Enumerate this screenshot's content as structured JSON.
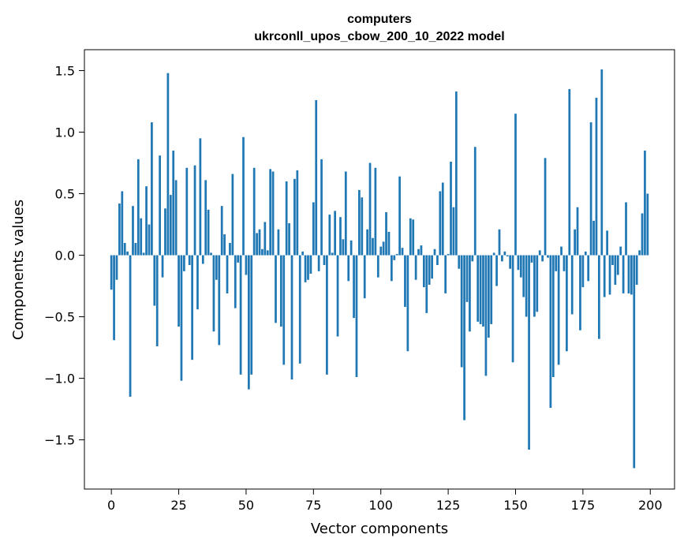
{
  "chart_data": {
    "type": "bar",
    "title": "computers",
    "subtitle": "ukrconll_upos_cbow_200_10_2022 model",
    "xlabel": "Vector components",
    "ylabel": "Components values",
    "xlim": [
      -10,
      209
    ],
    "ylim": [
      -1.9,
      1.67
    ],
    "xticks": [
      0,
      25,
      50,
      75,
      100,
      125,
      150,
      175,
      200
    ],
    "yticks": [
      -1.5,
      -1.0,
      -0.5,
      0.0,
      0.5,
      1.0,
      1.5
    ],
    "ytick_labels": [
      "−1.5",
      "−1.0",
      "−0.5",
      "0.0",
      "0.5",
      "1.0",
      "1.5"
    ],
    "grid": false,
    "bar_color": "#1f77b4",
    "x": [
      0,
      1,
      2,
      3,
      4,
      5,
      6,
      7,
      8,
      9,
      10,
      11,
      12,
      13,
      14,
      15,
      16,
      17,
      18,
      19,
      20,
      21,
      22,
      23,
      24,
      25,
      26,
      27,
      28,
      29,
      30,
      31,
      32,
      33,
      34,
      35,
      36,
      37,
      38,
      39,
      40,
      41,
      42,
      43,
      44,
      45,
      46,
      47,
      48,
      49,
      50,
      51,
      52,
      53,
      54,
      55,
      56,
      57,
      58,
      59,
      60,
      61,
      62,
      63,
      64,
      65,
      66,
      67,
      68,
      69,
      70,
      71,
      72,
      73,
      74,
      75,
      76,
      77,
      78,
      79,
      80,
      81,
      82,
      83,
      84,
      85,
      86,
      87,
      88,
      89,
      90,
      91,
      92,
      93,
      94,
      95,
      96,
      97,
      98,
      99,
      100,
      101,
      102,
      103,
      104,
      105,
      106,
      107,
      108,
      109,
      110,
      111,
      112,
      113,
      114,
      115,
      116,
      117,
      118,
      119,
      120,
      121,
      122,
      123,
      124,
      125,
      126,
      127,
      128,
      129,
      130,
      131,
      132,
      133,
      134,
      135,
      136,
      137,
      138,
      139,
      140,
      141,
      142,
      143,
      144,
      145,
      146,
      147,
      148,
      149,
      150,
      151,
      152,
      153,
      154,
      155,
      156,
      157,
      158,
      159,
      160,
      161,
      162,
      163,
      164,
      165,
      166,
      167,
      168,
      169,
      170,
      171,
      172,
      173,
      174,
      175,
      176,
      177,
      178,
      179,
      180,
      181,
      182,
      183,
      184,
      185,
      186,
      187,
      188,
      189,
      190,
      191,
      192,
      193,
      194,
      195,
      196,
      197,
      198,
      199
    ],
    "values": [
      -0.28,
      -0.69,
      -0.2,
      0.42,
      0.52,
      0.1,
      0.03,
      -1.15,
      0.4,
      0.1,
      0.78,
      0.3,
      0.02,
      0.56,
      0.25,
      1.08,
      -0.41,
      -0.74,
      0.81,
      -0.18,
      0.38,
      1.48,
      0.49,
      0.85,
      0.61,
      -0.58,
      -1.02,
      -0.13,
      0.71,
      -0.08,
      -0.85,
      0.73,
      -0.44,
      0.95,
      -0.07,
      0.61,
      0.37,
      0.02,
      -0.62,
      -0.2,
      -0.73,
      0.4,
      0.17,
      -0.31,
      0.1,
      0.66,
      -0.43,
      -0.06,
      -0.97,
      0.96,
      -0.16,
      -1.09,
      -0.97,
      0.71,
      0.18,
      0.21,
      0.05,
      0.27,
      0.04,
      0.7,
      0.68,
      -0.55,
      0.21,
      -0.58,
      -0.89,
      0.6,
      0.26,
      -1.01,
      0.62,
      0.69,
      -0.88,
      0.03,
      -0.22,
      -0.2,
      -0.15,
      0.43,
      1.26,
      -0.13,
      0.78,
      -0.08,
      -0.97,
      0.33,
      0.02,
      0.36,
      -0.66,
      0.31,
      0.13,
      0.68,
      -0.21,
      0.12,
      -0.51,
      -0.99,
      0.53,
      0.47,
      -0.35,
      0.21,
      0.75,
      0.14,
      0.71,
      -0.18,
      0.07,
      0.11,
      0.35,
      0.19,
      -0.21,
      -0.04,
      0.01,
      0.64,
      0.06,
      -0.42,
      -0.78,
      0.3,
      0.29,
      -0.2,
      0.05,
      0.08,
      -0.26,
      -0.47,
      -0.24,
      -0.19,
      0.05,
      -0.08,
      0.52,
      0.59,
      -0.31,
      0.01,
      0.76,
      0.39,
      1.33,
      -0.11,
      -0.91,
      -1.34,
      -0.38,
      -0.62,
      -0.05,
      0.88,
      -0.54,
      -0.56,
      -0.58,
      -0.98,
      -0.67,
      -0.56,
      0.02,
      -0.25,
      0.21,
      -0.05,
      0.03,
      -0.01,
      -0.11,
      -0.87,
      1.15,
      -0.12,
      -0.18,
      -0.34,
      -0.5,
      -1.58,
      -0.06,
      -0.5,
      -0.46,
      0.04,
      -0.05,
      0.79,
      -0.02,
      -1.24,
      -0.99,
      -0.13,
      -0.89,
      0.07,
      -0.13,
      -0.78,
      1.35,
      -0.48,
      0.21,
      0.39,
      -0.61,
      -0.26,
      0.03,
      -0.21,
      1.08,
      0.28,
      1.28,
      -0.68,
      1.51,
      -0.34,
      0.2,
      -0.32,
      -0.08,
      -0.24,
      -0.16,
      0.07,
      -0.31,
      0.43,
      -0.31,
      -0.32,
      -1.73,
      -0.24,
      0.04,
      0.34,
      0.85,
      0.5
    ]
  }
}
